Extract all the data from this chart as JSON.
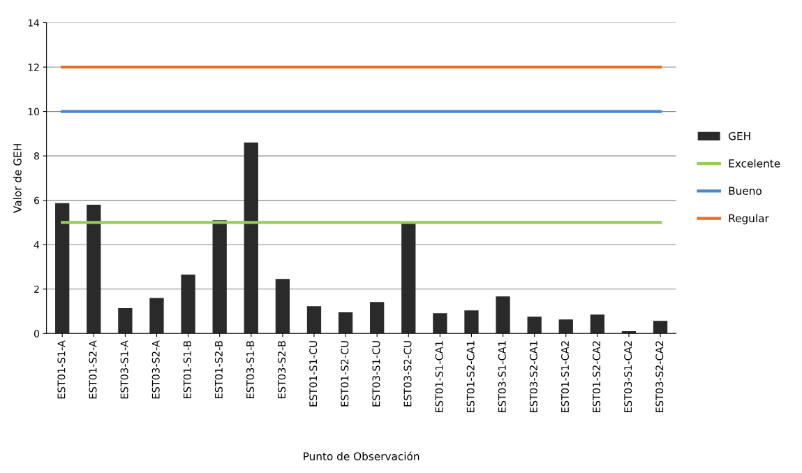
{
  "chart_data": {
    "type": "bar",
    "xlabel": "Punto de Observación",
    "ylabel": "Valor de GEH",
    "categories": [
      "EST01-S1-A",
      "EST01-S2-A",
      "EST03-S1-A",
      "EST03-S2-A",
      "EST01-S1-B",
      "EST01-S2-B",
      "EST03-S1-B",
      "EST03-S2-B",
      "EST01-S1-CU",
      "EST01-S2-CU",
      "EST03-S1-CU",
      "EST03-S2-CU",
      "EST01-S1-CA1",
      "EST01-S2-CA1",
      "EST03-S1-CA1",
      "EST03-S2-CA1",
      "EST01-S1-CA2",
      "EST01-S2-CA2",
      "EST03-S1-CA2",
      "EST03-S2-CA2"
    ],
    "series": [
      {
        "name": "GEH",
        "color": "#2a2a2a",
        "values": [
          5.87,
          5.8,
          1.14,
          1.6,
          2.65,
          5.1,
          8.6,
          2.46,
          1.23,
          0.95,
          1.42,
          4.95,
          0.91,
          1.04,
          1.67,
          0.76,
          0.63,
          0.85,
          0.1,
          0.57
        ]
      },
      {
        "name": "Excelente",
        "type": "line",
        "color": "#92d050",
        "values": [
          5,
          5,
          5,
          5,
          5,
          5,
          5,
          5,
          5,
          5,
          5,
          5,
          5,
          5,
          5,
          5,
          5,
          5,
          5,
          5
        ]
      },
      {
        "name": "Bueno",
        "type": "line",
        "color": "#4a86d4",
        "values": [
          10,
          10,
          10,
          10,
          10,
          10,
          10,
          10,
          10,
          10,
          10,
          10,
          10,
          10,
          10,
          10,
          10,
          10,
          10,
          10
        ]
      },
      {
        "name": "Regular",
        "type": "line",
        "color": "#ed6d1f",
        "values": [
          12,
          12,
          12,
          12,
          12,
          12,
          12,
          12,
          12,
          12,
          12,
          12,
          12,
          12,
          12,
          12,
          12,
          12,
          12,
          12
        ]
      }
    ],
    "ylim": [
      0,
      14
    ],
    "yticks": [
      0,
      2,
      4,
      6,
      8,
      10,
      12,
      14
    ],
    "grid": "y",
    "legend": "right"
  }
}
